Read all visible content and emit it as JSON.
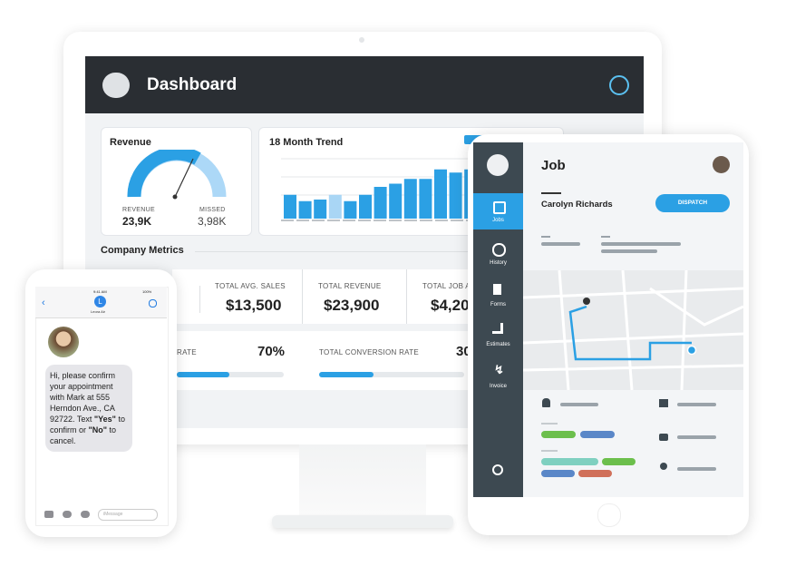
{
  "dashboard": {
    "title": "Dashboard",
    "revenue": {
      "title": "Revenue",
      "revenue_label": "REVENUE",
      "revenue_value": "23,9K",
      "missed_label": "MISSED",
      "missed_value": "3,98K"
    },
    "trend": {
      "title": "18 Month Trend",
      "values": [
        30,
        22,
        24,
        30,
        22,
        30,
        40,
        44,
        50,
        50,
        62,
        58,
        62
      ],
      "ylim": [
        0,
        80
      ],
      "color": "#2ba0e4",
      "highlight": 3,
      "highlight_color": "#a9d6f5"
    },
    "company_metrics": "Company Metrics",
    "metrics": [
      {
        "label": "TOTAL AVG. SALES",
        "value": "$13,500"
      },
      {
        "label": "TOTAL REVENUE",
        "value": "$23,900"
      },
      {
        "label": "TOTAL JOB AV",
        "value": "$4,20"
      }
    ],
    "rates": [
      {
        "label": "RATE",
        "value": "70%"
      },
      {
        "label": "TOTAL CONVERSION RATE",
        "value": "30"
      }
    ]
  },
  "phone": {
    "time": "9:41 AM",
    "battery": "100%",
    "contact_initial": "L",
    "contact": "Leora Air",
    "message_parts": [
      "Hi, please confirm your appointment with Mark at 555 Herndon Ave., CA 92722. Text ",
      "\"Yes\"",
      " to confirm or ",
      "\"No\"",
      " to cancel."
    ],
    "input_placeholder": "iMessage"
  },
  "tablet": {
    "title": "Job",
    "customer": "Carolyn Richards",
    "button": "DISPATCH",
    "nav": [
      "Jobs",
      "History",
      "Forms",
      "Estimates",
      "Invoice"
    ]
  }
}
